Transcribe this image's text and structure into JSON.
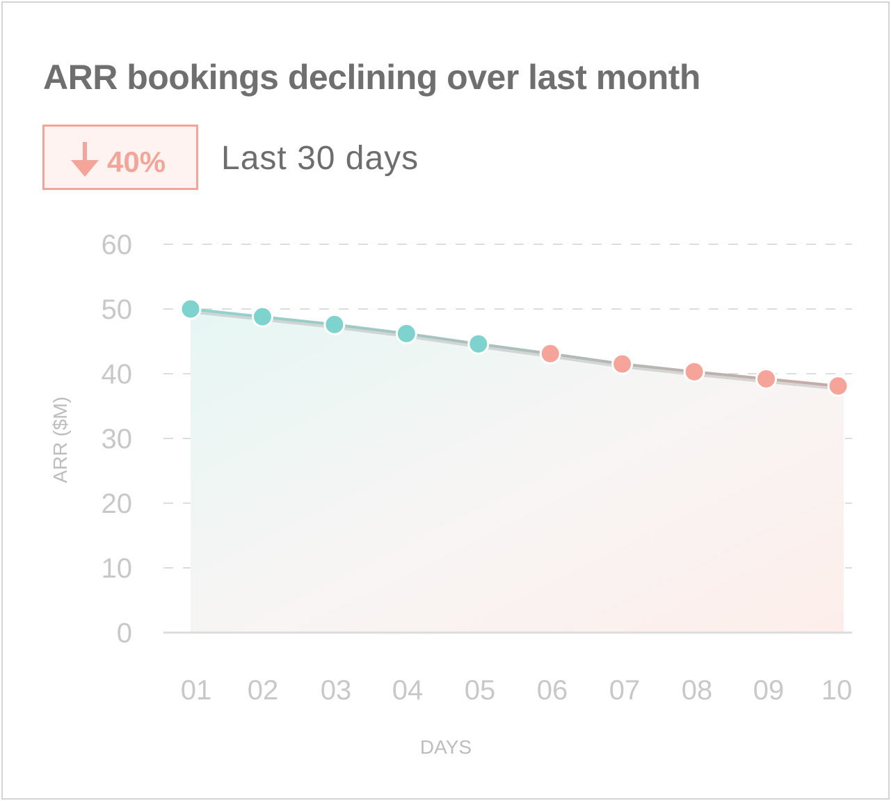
{
  "card": {
    "title": "ARR bookings declining over last month",
    "badge": {
      "icon": "arrow-down-icon",
      "value": "40%"
    },
    "period": "Last 30 days"
  },
  "colors": {
    "teal": "#7fd3cf",
    "salmon": "#f6a39a",
    "grid": "#dddddd",
    "tick": "#c8c8c8",
    "title": "#6f6f6f"
  },
  "chart_data": {
    "type": "line",
    "title": "ARR bookings declining over last month",
    "xlabel": "DAYS",
    "ylabel": "ARR ($M)",
    "categories": [
      "01",
      "02",
      "03",
      "04",
      "05",
      "06",
      "07",
      "08",
      "09",
      "10"
    ],
    "values": [
      50,
      48.8,
      47.6,
      46.2,
      44.6,
      43.1,
      41.5,
      40.3,
      39.2,
      38.1
    ],
    "point_colors": [
      "#7fd3cf",
      "#7fd3cf",
      "#7fd3cf",
      "#7fd3cf",
      "#7fd3cf",
      "#f6a39a",
      "#f6a39a",
      "#f6a39a",
      "#f6a39a",
      "#f6a39a"
    ],
    "yticks": [
      0,
      10,
      20,
      30,
      40,
      50,
      60
    ],
    "ylim": [
      0,
      60
    ],
    "grid": true,
    "area_fill": true
  }
}
